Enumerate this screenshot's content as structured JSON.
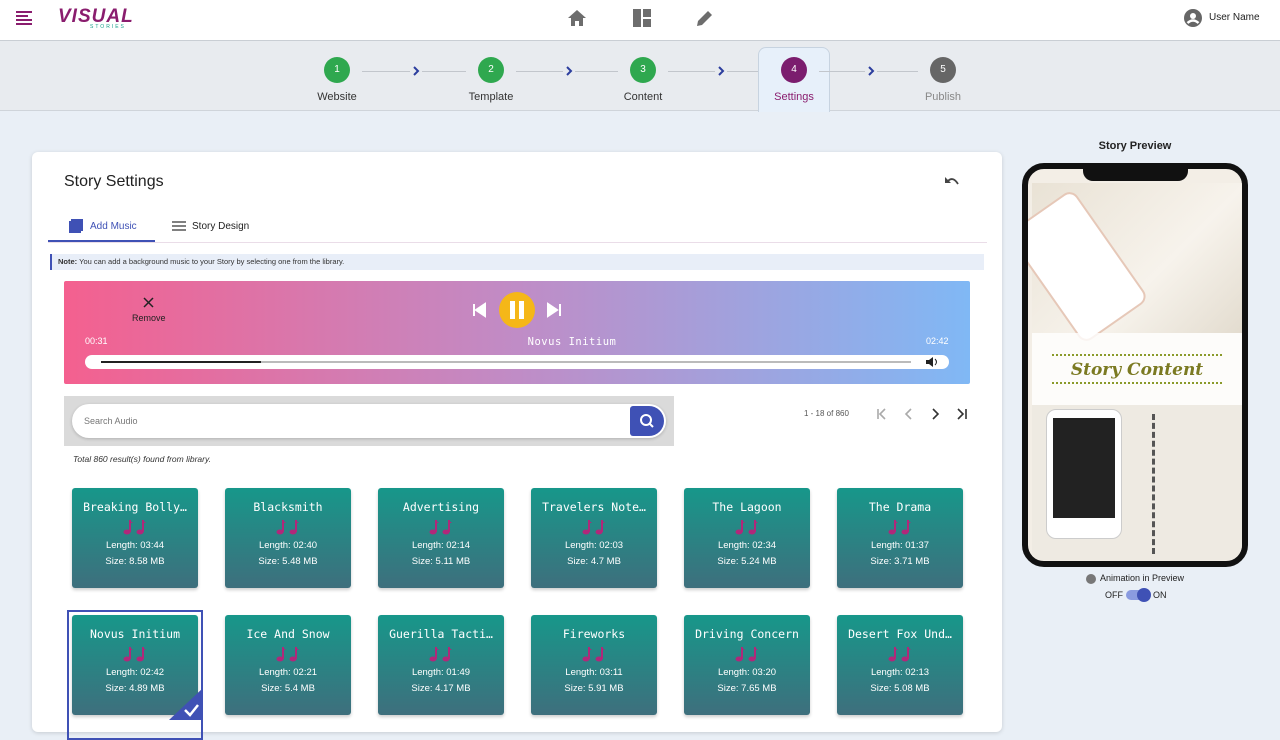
{
  "header": {
    "logo": "VISUAL",
    "logo_sub": "STORIES",
    "user": "User Name"
  },
  "steps": [
    {
      "num": "1",
      "label": "Website"
    },
    {
      "num": "2",
      "label": "Template"
    },
    {
      "num": "3",
      "label": "Content"
    },
    {
      "num": "4",
      "label": "Settings"
    },
    {
      "num": "5",
      "label": "Publish"
    }
  ],
  "panel": {
    "title": "Story Settings",
    "tabs": [
      "Add Music",
      "Story Design"
    ],
    "note_label": "Note:",
    "note": "You can add a background music to your Story by selecting one from the library."
  },
  "player": {
    "remove": "Remove",
    "current": "00:31",
    "track": "Novus Initium",
    "duration": "02:42"
  },
  "search": {
    "placeholder": "Search Audio",
    "pagination": "1 - 18 of 860",
    "results": "Total 860 result(s) found from library."
  },
  "tracks": [
    {
      "title": "Breaking Bolly…",
      "length": "Length: 03:44",
      "size": "Size: 8.58 MB"
    },
    {
      "title": "Blacksmith",
      "length": "Length: 02:40",
      "size": "Size: 5.48 MB"
    },
    {
      "title": "Advertising",
      "length": "Length: 02:14",
      "size": "Size: 5.11 MB"
    },
    {
      "title": "Travelers Note…",
      "length": "Length: 02:03",
      "size": "Size: 4.7 MB"
    },
    {
      "title": "The Lagoon",
      "length": "Length: 02:34",
      "size": "Size: 5.24 MB"
    },
    {
      "title": "The Drama",
      "length": "Length: 01:37",
      "size": "Size: 3.71 MB"
    },
    {
      "title": "Novus Initium",
      "length": "Length: 02:42",
      "size": "Size: 4.89 MB"
    },
    {
      "title": "Ice And Snow",
      "length": "Length: 02:21",
      "size": "Size: 5.4 MB"
    },
    {
      "title": "Guerilla Tacti…",
      "length": "Length: 01:49",
      "size": "Size: 4.17 MB"
    },
    {
      "title": "Fireworks",
      "length": "Length: 03:11",
      "size": "Size: 5.91 MB"
    },
    {
      "title": "Driving Concern",
      "length": "Length: 03:20",
      "size": "Size: 7.65 MB"
    },
    {
      "title": "Desert Fox Und…",
      "length": "Length: 02:13",
      "size": "Size: 5.08 MB"
    }
  ],
  "preview": {
    "title": "Story Preview",
    "content": "Story Content",
    "animation": "Animation in Preview",
    "off": "OFF",
    "on": "ON"
  }
}
